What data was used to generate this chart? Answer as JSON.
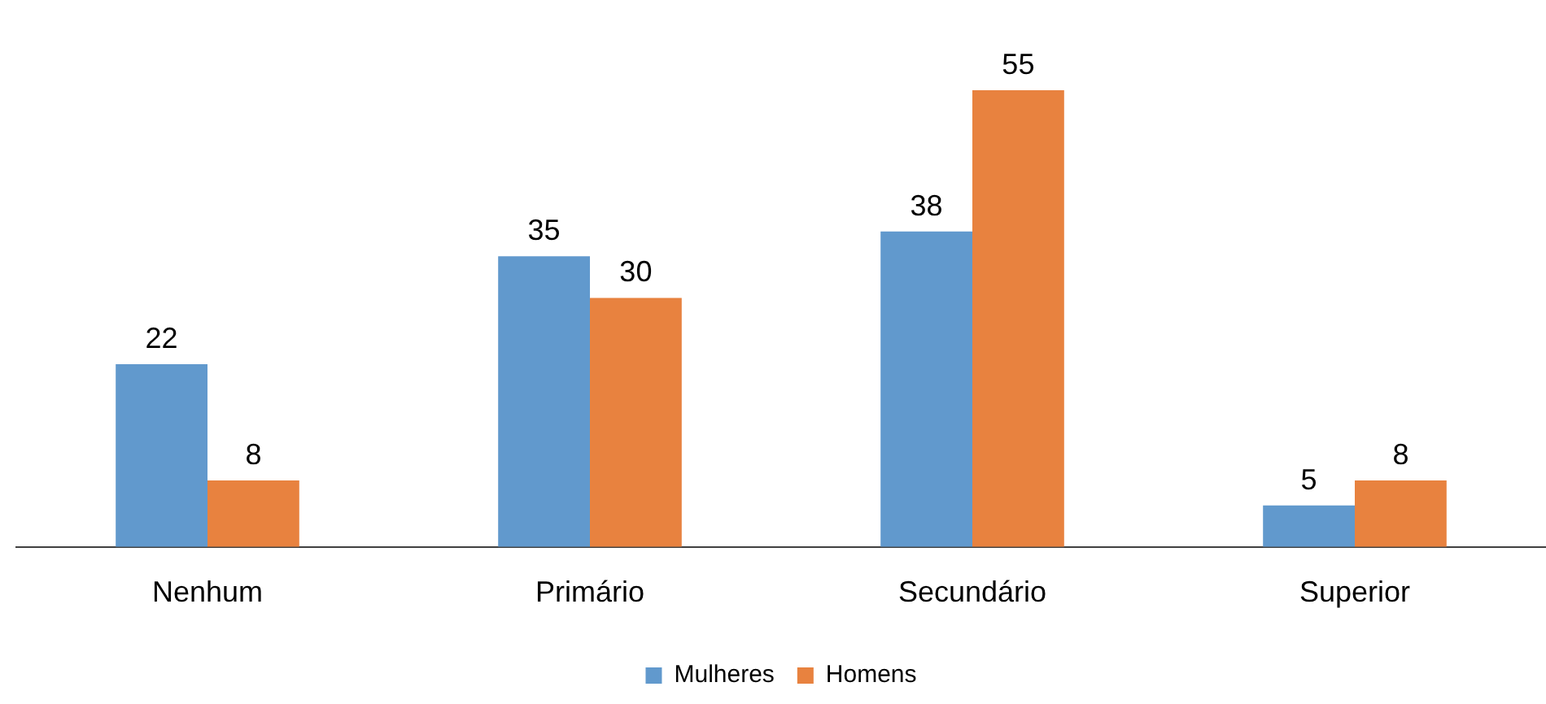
{
  "chart_data": {
    "type": "bar",
    "categories": [
      "Nenhum",
      "Primário",
      "Secundário",
      "Superior"
    ],
    "series": [
      {
        "name": "Mulheres",
        "color": "#6199cd",
        "values": [
          22,
          35,
          38,
          5
        ]
      },
      {
        "name": "Homens",
        "color": "#e8823f",
        "values": [
          8,
          30,
          55,
          8
        ]
      }
    ],
    "data_labels": true,
    "legend": "bottom",
    "grid": false,
    "tick_labels": "x"
  }
}
